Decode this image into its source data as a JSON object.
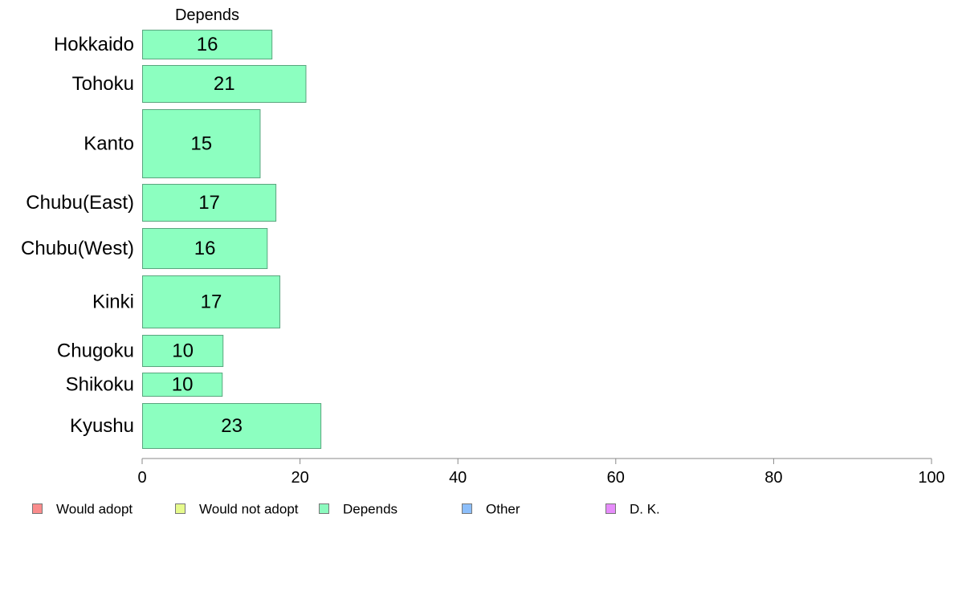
{
  "chart_data": {
    "type": "bar",
    "orientation": "horizontal",
    "title": "Depends",
    "categories": [
      "Hokkaido",
      "Tohoku",
      "Kanto",
      "Chubu(East)",
      "Chubu(West)",
      "Kinki",
      "Chugoku",
      "Shikoku",
      "Kyushu"
    ],
    "series": [
      {
        "name": "Depends",
        "values": [
          16.5,
          20.8,
          15,
          17,
          15.9,
          17.5,
          10.3,
          10.2,
          22.7
        ],
        "labels": [
          "16",
          "21",
          "15",
          "17",
          "16",
          "17",
          "10",
          "10",
          "23"
        ]
      }
    ],
    "xlim": [
      0,
      100
    ],
    "xticks": [
      0,
      20,
      40,
      60,
      80,
      100
    ],
    "xticklabels": [
      "0",
      "20",
      "40",
      "60",
      "80",
      "100"
    ],
    "xlabel": "",
    "ylabel": "",
    "grid": false,
    "legend": {
      "position": "bottom",
      "entries": [
        {
          "label": "Would adopt",
          "color": "#fa8c8c"
        },
        {
          "label": "Would not adopt",
          "color": "#e6fa8c"
        },
        {
          "label": "Depends",
          "color": "#8cfabe"
        },
        {
          "label": "Other",
          "color": "#8cbefa"
        },
        {
          "label": "D. K.",
          "color": "#e68cfa"
        }
      ]
    },
    "colors": {
      "bar_fill": "#8cffc0",
      "bar_stroke": "#5aa57e",
      "axis": "#888888"
    }
  }
}
